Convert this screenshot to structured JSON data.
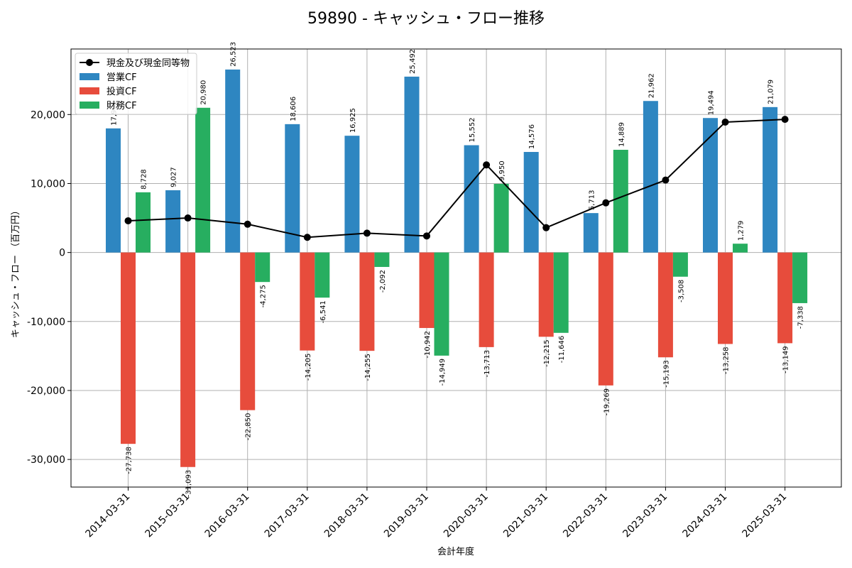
{
  "chart_data": {
    "type": "bar",
    "title": "59890 - キャッシュ・フロー推移",
    "xlabel": "会計年度",
    "ylabel": "キャッシュ・フロー （百万円）",
    "categories": [
      "2014-03-31",
      "2015-03-31",
      "2016-03-31",
      "2017-03-31",
      "2018-03-31",
      "2019-03-31",
      "2020-03-31",
      "2021-03-31",
      "2022-03-31",
      "2023-03-31",
      "2024-03-31",
      "2025-03-31"
    ],
    "series": [
      {
        "name": "営業CF",
        "kind": "bar",
        "color": "#2e86c1",
        "values": [
          17990,
          9027,
          26523,
          18606,
          16925,
          25492,
          15552,
          14576,
          5713,
          21962,
          19494,
          21079
        ],
        "labels": [
          "17,990",
          "9,027",
          "26,523",
          "18,606",
          "16,925",
          "25,492",
          "15,552",
          "14,576",
          "5,713",
          "21,962",
          "19,494",
          "21,079"
        ]
      },
      {
        "name": "投資CF",
        "kind": "bar",
        "color": "#e74c3c",
        "values": [
          -27738,
          -31093,
          -22850,
          -14205,
          -14255,
          -10942,
          -13713,
          -12215,
          -19269,
          -15193,
          -13258,
          -13149
        ],
        "labels": [
          "-27,738",
          "-31,093",
          "-22,850",
          "-14,205",
          "-14,255",
          "-10,942",
          "-13,713",
          "-12,215",
          "-19,269",
          "-15,193",
          "-13,258",
          "-13,149"
        ]
      },
      {
        "name": "財務CF",
        "kind": "bar",
        "color": "#27ae60",
        "values": [
          8728,
          20980,
          -4275,
          -6541,
          -2092,
          -14949,
          9950,
          -11646,
          14889,
          -3508,
          1279,
          -7338
        ],
        "labels": [
          "8,728",
          "20,980",
          "-4,275",
          "-6,541",
          "-2,092",
          "-14,949",
          "9,950",
          "-11,646",
          "14,889",
          "-3,508",
          "1,279",
          "-7,338"
        ]
      },
      {
        "name": "現金及び現金同等物",
        "kind": "line",
        "color": "#000000",
        "values": [
          4600,
          5000,
          4100,
          2200,
          2800,
          2400,
          12700,
          3600,
          7200,
          10500,
          18900,
          19300
        ]
      }
    ],
    "yticks": [
      -30000,
      -20000,
      -10000,
      0,
      10000,
      20000
    ],
    "ytick_labels": [
      "-30,000",
      "-20,000",
      "-10,000",
      "0",
      "10,000",
      "20,000"
    ],
    "ylim": [
      -34000,
      29500
    ],
    "grid": true,
    "legend_position": "top-left"
  }
}
